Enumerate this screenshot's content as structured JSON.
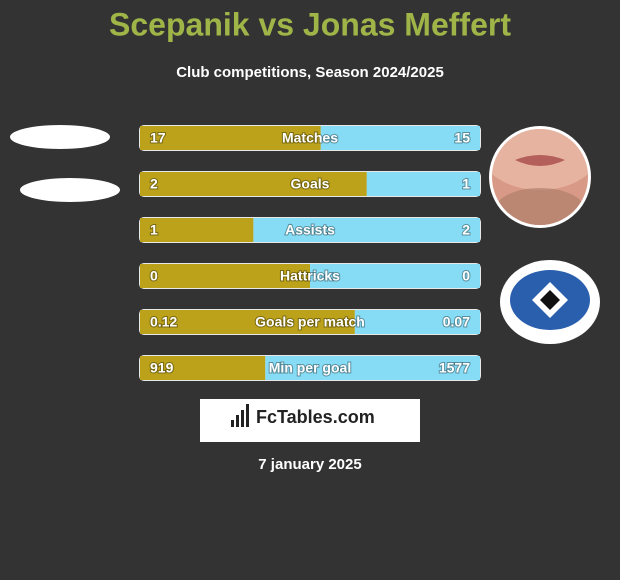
{
  "header": {
    "title": "Scepanik vs Jonas Meffert",
    "subtitle": "Club competitions, Season 2024/2025"
  },
  "rows": [
    {
      "label": "Matches",
      "left": 17,
      "right": 15
    },
    {
      "label": "Goals",
      "left": 2,
      "right": 1
    },
    {
      "label": "Assists",
      "left": 1,
      "right": 2
    },
    {
      "label": "Hattricks",
      "left": 0,
      "right": 0
    },
    {
      "label": "Goals per match",
      "left": 0.12,
      "right": 0.07
    },
    {
      "label": "Min per goal",
      "left": 919,
      "right": 1577
    }
  ],
  "brand": "FcTables.com",
  "date": "7 january 2025"
}
